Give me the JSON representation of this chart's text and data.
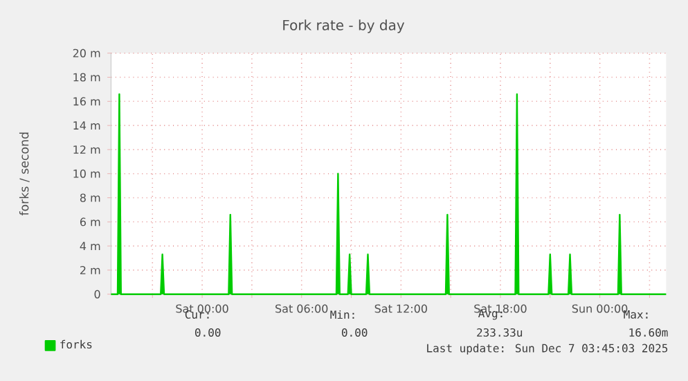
{
  "chart_data": {
    "type": "line",
    "title": "Fork rate - by day",
    "ylabel": "forks / second",
    "x": [
      "2025-12-05T18:30",
      "2025-12-05T18:54",
      "2025-12-05T19:00",
      "2025-12-05T19:06",
      "2025-12-05T21:30",
      "2025-12-05T21:36",
      "2025-12-05T21:42",
      "2025-12-06T01:36",
      "2025-12-06T01:42",
      "2025-12-06T01:48",
      "2025-12-06T08:06",
      "2025-12-06T08:12",
      "2025-12-06T08:18",
      "2025-12-06T08:48",
      "2025-12-06T08:54",
      "2025-12-06T09:00",
      "2025-12-06T09:54",
      "2025-12-06T10:00",
      "2025-12-06T10:06",
      "2025-12-06T14:42",
      "2025-12-06T14:48",
      "2025-12-06T14:54",
      "2025-12-06T18:54",
      "2025-12-06T19:00",
      "2025-12-06T19:06",
      "2025-12-06T20:54",
      "2025-12-06T21:00",
      "2025-12-06T21:06",
      "2025-12-06T22:06",
      "2025-12-06T22:12",
      "2025-12-06T22:18",
      "2025-12-07T01:06",
      "2025-12-07T01:12",
      "2025-12-07T01:18",
      "2025-12-07T04:00"
    ],
    "series": [
      {
        "name": "forks",
        "color": "#00cc00",
        "values": [
          0,
          0,
          16.6,
          0,
          0,
          3.3,
          0,
          0,
          6.6,
          0,
          0,
          10,
          0,
          0,
          3.3,
          0,
          0,
          3.3,
          0,
          0,
          6.6,
          0,
          0,
          16.6,
          0,
          0,
          3.3,
          0,
          0,
          3.3,
          0,
          0,
          6.6,
          0,
          0
        ]
      }
    ],
    "xlim": [
      "2025-12-05T18:30",
      "2025-12-07T04:00"
    ],
    "xticks": [
      {
        "value": "2025-12-05T21:00",
        "label": null
      },
      {
        "value": "2025-12-06T00:00",
        "label": "Sat 00:00"
      },
      {
        "value": "2025-12-06T03:00",
        "label": null
      },
      {
        "value": "2025-12-06T06:00",
        "label": "Sat 06:00"
      },
      {
        "value": "2025-12-06T09:00",
        "label": null
      },
      {
        "value": "2025-12-06T12:00",
        "label": "Sat 12:00"
      },
      {
        "value": "2025-12-06T15:00",
        "label": null
      },
      {
        "value": "2025-12-06T18:00",
        "label": "Sat 18:00"
      },
      {
        "value": "2025-12-06T21:00",
        "label": null
      },
      {
        "value": "2025-12-07T00:00",
        "label": "Sun 00:00"
      },
      {
        "value": "2025-12-07T03:00",
        "label": null
      }
    ],
    "ylim": [
      0,
      20
    ],
    "yticks": [
      0,
      {
        "value": 2,
        "label": "2 m"
      },
      {
        "value": 4,
        "label": "4 m"
      },
      {
        "value": 6,
        "label": "6 m"
      },
      {
        "value": 8,
        "label": "8 m"
      },
      {
        "value": 10,
        "label": "10 m"
      },
      {
        "value": 12,
        "label": "12 m"
      },
      {
        "value": 14,
        "label": "14 m"
      },
      {
        "value": 16,
        "label": "16 m"
      },
      {
        "value": 18,
        "label": "18 m"
      },
      {
        "value": 20,
        "label": "20 m"
      }
    ],
    "grid": true,
    "legend": "bottom left",
    "marker": "none",
    "line_style": "solid",
    "annotations": [
      "Cur:",
      "Min:",
      "Avg:",
      "Max:",
      "0.00",
      "0.00",
      "233.33u",
      "16.60m",
      "Last update: Sun Dec  7 03:45:03 2025"
    ]
  }
}
